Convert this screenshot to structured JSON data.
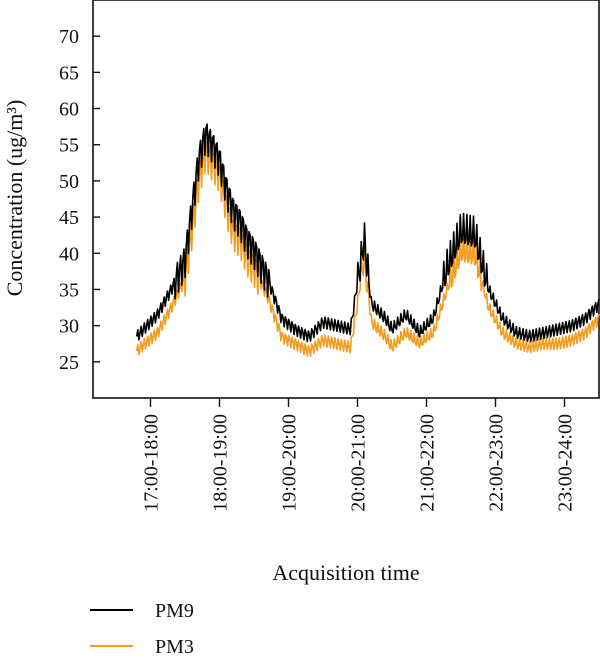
{
  "chart_data": {
    "type": "line",
    "title": "",
    "xlabel": "Acquisition time",
    "ylabel": "Concentration (ug/m³)",
    "ylim": [
      20,
      75
    ],
    "yticks": [
      25,
      30,
      35,
      40,
      45,
      50,
      55,
      60,
      65,
      70
    ],
    "xlim": [
      0,
      7
    ],
    "categories": [
      "17:00-18:00",
      "18:00-19:00",
      "19:00-20:00",
      "20:00-21:00",
      "21:00-22:00",
      "22:00-23:00",
      "23:00-24:00"
    ],
    "grid": false,
    "legend_position": "bottom-left",
    "series": [
      {
        "name": "PM9",
        "color": "#000000",
        "x": [
          0.3,
          0.6,
          0.8,
          1.0,
          1.1,
          1.2,
          1.3,
          1.4,
          1.5,
          1.6,
          1.7,
          1.8,
          1.9,
          2.0,
          2.2,
          2.4,
          2.6,
          2.8,
          3.0,
          3.2,
          3.4,
          3.5,
          3.6,
          3.7,
          3.8,
          3.9,
          4.0,
          4.2,
          4.4,
          4.6,
          4.8,
          5.0,
          5.2,
          5.4,
          5.6,
          5.8,
          6.0,
          6.2,
          6.4,
          6.6,
          6.8,
          7.0
        ],
        "values": [
          28.5,
          31.5,
          35,
          39,
          46,
          53,
          56.5,
          55,
          53,
          49,
          46,
          44.5,
          42,
          40.5,
          36.5,
          31,
          29.5,
          28.5,
          30.5,
          30,
          29.5,
          36,
          42,
          33,
          32,
          31,
          29.5,
          31.5,
          29,
          31,
          38,
          43,
          42.5,
          35,
          31,
          29,
          28.5,
          29,
          29.5,
          30,
          31,
          33
        ]
      },
      {
        "name": "PM3",
        "color": "#f39c1e",
        "x": [
          0.3,
          0.6,
          0.8,
          1.0,
          1.1,
          1.2,
          1.3,
          1.4,
          1.5,
          1.6,
          1.7,
          1.8,
          1.9,
          2.0,
          2.2,
          2.4,
          2.6,
          2.8,
          3.0,
          3.2,
          3.4,
          3.5,
          3.6,
          3.7,
          3.8,
          3.9,
          4.0,
          4.2,
          4.4,
          4.6,
          4.8,
          5.0,
          5.2,
          5.4,
          5.6,
          5.8,
          6.0,
          6.2,
          6.4,
          6.6,
          6.8,
          7.0
        ],
        "values": [
          26.5,
          29,
          32.5,
          36.5,
          43,
          50,
          54,
          52.5,
          51,
          46.5,
          43,
          42,
          39.5,
          38,
          34,
          28.5,
          27.5,
          26.5,
          28,
          27.5,
          27,
          33,
          40,
          30.5,
          29.5,
          28.5,
          27,
          29,
          27.5,
          29,
          35,
          40.5,
          40,
          32.5,
          29,
          27.5,
          27,
          27.5,
          27.5,
          28,
          29,
          31
        ]
      }
    ]
  }
}
